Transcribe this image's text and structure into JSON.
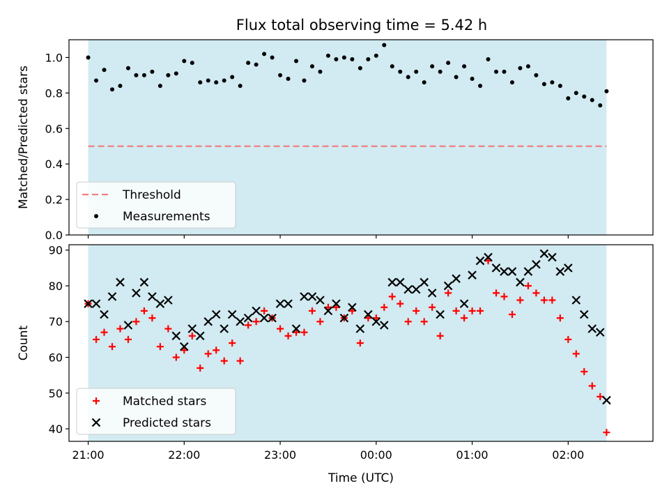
{
  "title": "Flux total observing time = 5.42 h",
  "colors": {
    "shade": "#add8e6",
    "threshold": "#f08080",
    "measurements": "#000000",
    "matched": "#ff0000",
    "predicted": "#000000"
  },
  "chart_data": [
    {
      "type": "scatter",
      "name": "ratio",
      "ylabel": "Matched/Predicted stars",
      "xlabel": "",
      "ylim": [
        0.0,
        1.1
      ],
      "yticks": [
        0.0,
        0.2,
        0.4,
        0.6,
        0.8,
        1.0
      ],
      "ytick_labels": [
        "0.0",
        "0.2",
        "0.4",
        "0.6",
        "0.8",
        "1.0"
      ],
      "shaded_span": [
        "21:00",
        "02:24"
      ],
      "legend_placement": "lower-left",
      "threshold": {
        "label": "Threshold",
        "value": 0.5,
        "style": "dashed"
      },
      "series": [
        {
          "name": "Measurements",
          "marker": "dot",
          "x": [
            "21:00",
            "21:05",
            "21:10",
            "21:15",
            "21:20",
            "21:25",
            "21:30",
            "21:35",
            "21:40",
            "21:45",
            "21:50",
            "21:55",
            "22:00",
            "22:05",
            "22:10",
            "22:15",
            "22:20",
            "22:25",
            "22:30",
            "22:35",
            "22:40",
            "22:45",
            "22:50",
            "22:55",
            "23:00",
            "23:05",
            "23:10",
            "23:15",
            "23:20",
            "23:25",
            "23:30",
            "23:35",
            "23:40",
            "23:45",
            "23:50",
            "23:55",
            "00:00",
            "00:05",
            "00:10",
            "00:15",
            "00:20",
            "00:25",
            "00:30",
            "00:35",
            "00:40",
            "00:45",
            "00:50",
            "00:55",
            "01:00",
            "01:05",
            "01:10",
            "01:15",
            "01:20",
            "01:25",
            "01:30",
            "01:35",
            "01:40",
            "01:45",
            "01:50",
            "01:55",
            "02:00",
            "02:05",
            "02:10",
            "02:15",
            "02:20",
            "02:24"
          ],
          "y": [
            1.0,
            0.87,
            0.93,
            0.82,
            0.84,
            0.94,
            0.9,
            0.9,
            0.92,
            0.84,
            0.9,
            0.91,
            0.98,
            0.97,
            0.86,
            0.87,
            0.86,
            0.87,
            0.89,
            0.84,
            0.97,
            0.96,
            1.02,
            1.0,
            0.9,
            0.88,
            0.98,
            0.87,
            0.95,
            0.92,
            1.01,
            0.99,
            1.0,
            0.99,
            0.94,
            0.99,
            1.01,
            1.07,
            0.95,
            0.92,
            0.89,
            0.92,
            0.86,
            0.95,
            0.92,
            0.97,
            0.89,
            0.95,
            0.88,
            0.84,
            0.99,
            0.92,
            0.92,
            0.86,
            0.94,
            0.95,
            0.9,
            0.85,
            0.86,
            0.84,
            0.77,
            0.8,
            0.78,
            0.76,
            0.73,
            0.81
          ]
        }
      ]
    },
    {
      "type": "scatter",
      "name": "counts",
      "xlabel": "Time (UTC)",
      "ylabel": "Count",
      "xlim": [
        "20:48",
        "02:53"
      ],
      "ylim": [
        36.5,
        91.5
      ],
      "xticks": [
        "21:00",
        "22:00",
        "23:00",
        "00:00",
        "01:00",
        "02:00"
      ],
      "yticks": [
        40,
        50,
        60,
        70,
        80,
        90
      ],
      "ytick_labels": [
        "40",
        "50",
        "60",
        "70",
        "80",
        "90"
      ],
      "shaded_span": [
        "21:00",
        "02:24"
      ],
      "legend_placement": "lower-left",
      "series": [
        {
          "name": "Matched stars",
          "marker": "plus",
          "x": [
            "21:00",
            "21:05",
            "21:10",
            "21:15",
            "21:20",
            "21:25",
            "21:30",
            "21:35",
            "21:40",
            "21:45",
            "21:50",
            "21:55",
            "22:00",
            "22:05",
            "22:10",
            "22:15",
            "22:20",
            "22:25",
            "22:30",
            "22:35",
            "22:40",
            "22:45",
            "22:50",
            "22:55",
            "23:00",
            "23:05",
            "23:10",
            "23:15",
            "23:20",
            "23:25",
            "23:30",
            "23:35",
            "23:40",
            "23:45",
            "23:50",
            "23:55",
            "00:00",
            "00:05",
            "00:10",
            "00:15",
            "00:20",
            "00:25",
            "00:30",
            "00:35",
            "00:40",
            "00:45",
            "00:50",
            "00:55",
            "01:00",
            "01:05",
            "01:10",
            "01:15",
            "01:20",
            "01:25",
            "01:30",
            "01:35",
            "01:40",
            "01:45",
            "01:50",
            "01:55",
            "02:00",
            "02:05",
            "02:10",
            "02:15",
            "02:20",
            "02:24"
          ],
          "y": [
            75,
            65,
            67,
            63,
            68,
            65,
            70,
            73,
            71,
            63,
            68,
            60,
            62,
            66,
            57,
            61,
            62,
            59,
            64,
            59,
            69,
            70,
            73,
            71,
            68,
            66,
            67,
            67,
            73,
            70,
            74,
            74,
            71,
            73,
            64,
            71,
            71,
            74,
            77,
            75,
            70,
            73,
            70,
            74,
            66,
            78,
            73,
            71,
            73,
            73,
            87,
            78,
            77,
            72,
            76,
            80,
            78,
            76,
            76,
            71,
            65,
            61,
            56,
            52,
            49,
            39
          ]
        },
        {
          "name": "Predicted stars",
          "marker": "x",
          "x": [
            "21:00",
            "21:05",
            "21:10",
            "21:15",
            "21:20",
            "21:25",
            "21:30",
            "21:35",
            "21:40",
            "21:45",
            "21:50",
            "21:55",
            "22:00",
            "22:05",
            "22:10",
            "22:15",
            "22:20",
            "22:25",
            "22:30",
            "22:35",
            "22:40",
            "22:45",
            "22:50",
            "22:55",
            "23:00",
            "23:05",
            "23:10",
            "23:15",
            "23:20",
            "23:25",
            "23:30",
            "23:35",
            "23:40",
            "23:45",
            "23:50",
            "23:55",
            "00:00",
            "00:05",
            "00:10",
            "00:15",
            "00:20",
            "00:25",
            "00:30",
            "00:35",
            "00:40",
            "00:45",
            "00:50",
            "00:55",
            "01:00",
            "01:05",
            "01:10",
            "01:15",
            "01:20",
            "01:25",
            "01:30",
            "01:35",
            "01:40",
            "01:45",
            "01:50",
            "01:55",
            "02:00",
            "02:05",
            "02:10",
            "02:15",
            "02:20",
            "02:24"
          ],
          "y": [
            75,
            75,
            72,
            77,
            81,
            69,
            78,
            81,
            77,
            75,
            76,
            66,
            63,
            68,
            66,
            70,
            72,
            68,
            72,
            70,
            71,
            73,
            71,
            71,
            75,
            75,
            68,
            77,
            77,
            76,
            73,
            75,
            71,
            74,
            68,
            72,
            70,
            69,
            81,
            81,
            79,
            79,
            81,
            78,
            72,
            80,
            82,
            75,
            83,
            87,
            88,
            85,
            84,
            84,
            81,
            84,
            86,
            89,
            88,
            84,
            85,
            76,
            72,
            68,
            67,
            48
          ]
        }
      ]
    }
  ]
}
